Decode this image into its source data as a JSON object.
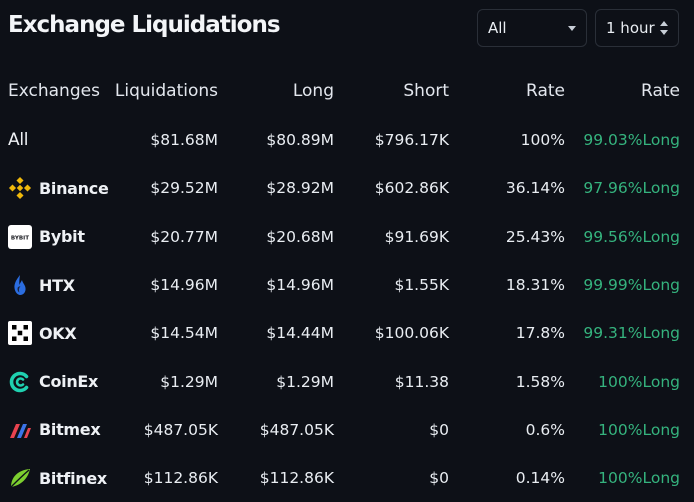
{
  "header": {
    "title": "Exchange Liquidations",
    "exchange_select": {
      "value": "All"
    },
    "time_select": {
      "value": "1 hour"
    }
  },
  "columns": [
    "Exchanges",
    "Liquidations",
    "Long",
    "Short",
    "Rate",
    "Rate"
  ],
  "rows": [
    {
      "exchange": "All",
      "icon": "",
      "liquidations": "$81.68M",
      "long": "$80.89M",
      "short": "$796.17K",
      "rate": "100%",
      "long_rate": "99.03%Long"
    },
    {
      "exchange": "Binance",
      "icon": "binance-icon",
      "liquidations": "$29.52M",
      "long": "$28.92M",
      "short": "$602.86K",
      "rate": "36.14%",
      "long_rate": "97.96%Long"
    },
    {
      "exchange": "Bybit",
      "icon": "bybit-icon",
      "liquidations": "$20.77M",
      "long": "$20.68M",
      "short": "$91.69K",
      "rate": "25.43%",
      "long_rate": "99.56%Long"
    },
    {
      "exchange": "HTX",
      "icon": "htx-icon",
      "liquidations": "$14.96M",
      "long": "$14.96M",
      "short": "$1.55K",
      "rate": "18.31%",
      "long_rate": "99.99%Long"
    },
    {
      "exchange": "OKX",
      "icon": "okx-icon",
      "liquidations": "$14.54M",
      "long": "$14.44M",
      "short": "$100.06K",
      "rate": "17.8%",
      "long_rate": "99.31%Long"
    },
    {
      "exchange": "CoinEx",
      "icon": "coinex-icon",
      "liquidations": "$1.29M",
      "long": "$1.29M",
      "short": "$11.38",
      "rate": "1.58%",
      "long_rate": "100%Long"
    },
    {
      "exchange": "Bitmex",
      "icon": "bitmex-icon",
      "liquidations": "$487.05K",
      "long": "$487.05K",
      "short": "$0",
      "rate": "0.6%",
      "long_rate": "100%Long"
    },
    {
      "exchange": "Bitfinex",
      "icon": "bitfinex-icon",
      "liquidations": "$112.86K",
      "long": "$112.86K",
      "short": "$0",
      "rate": "0.14%",
      "long_rate": "100%Long"
    }
  ],
  "bybit_logo_text": "BYBIT",
  "colors": {
    "background": "#0d1017",
    "long_green": "#35b37e",
    "binance_yellow": "#f0b90b",
    "coinex_teal": "#1fd1b0"
  }
}
